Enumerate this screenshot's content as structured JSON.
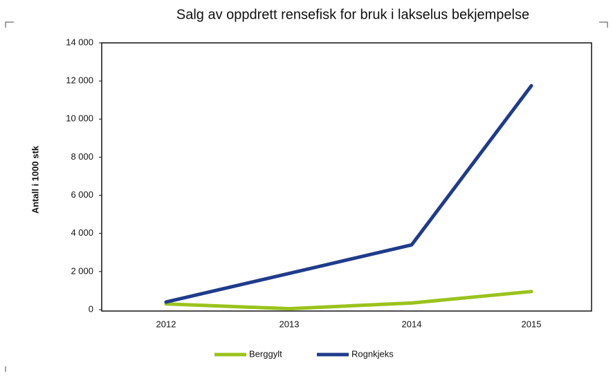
{
  "chart_data": {
    "type": "line",
    "title": "Salg av oppdrett rensefisk for bruk i lakselus bekjempelse",
    "ylabel": "Antall i 1000 stk",
    "categories": [
      "2012",
      "2013",
      "2014",
      "2015"
    ],
    "series": [
      {
        "name": "Berggylt",
        "color": "#9ac31c",
        "values": [
          300,
          50,
          350,
          950
        ]
      },
      {
        "name": "Rognkjeks",
        "color": "#1f3b8c",
        "values": [
          400,
          1900,
          3400,
          11750
        ]
      }
    ],
    "ylim": [
      0,
      14000
    ],
    "yticks": [
      0,
      {
        "value": 2000,
        "label": "2 000"
      },
      {
        "value": 4000,
        "label": "4 000"
      },
      {
        "value": 6000,
        "label": "6 000"
      },
      {
        "value": 8000,
        "label": "8 000"
      },
      {
        "value": 10000,
        "label": "10 000"
      },
      {
        "value": 12000,
        "label": "12 000"
      },
      {
        "value": 14000,
        "label": "14 000"
      }
    ],
    "grid": false,
    "legend": "bottom"
  }
}
